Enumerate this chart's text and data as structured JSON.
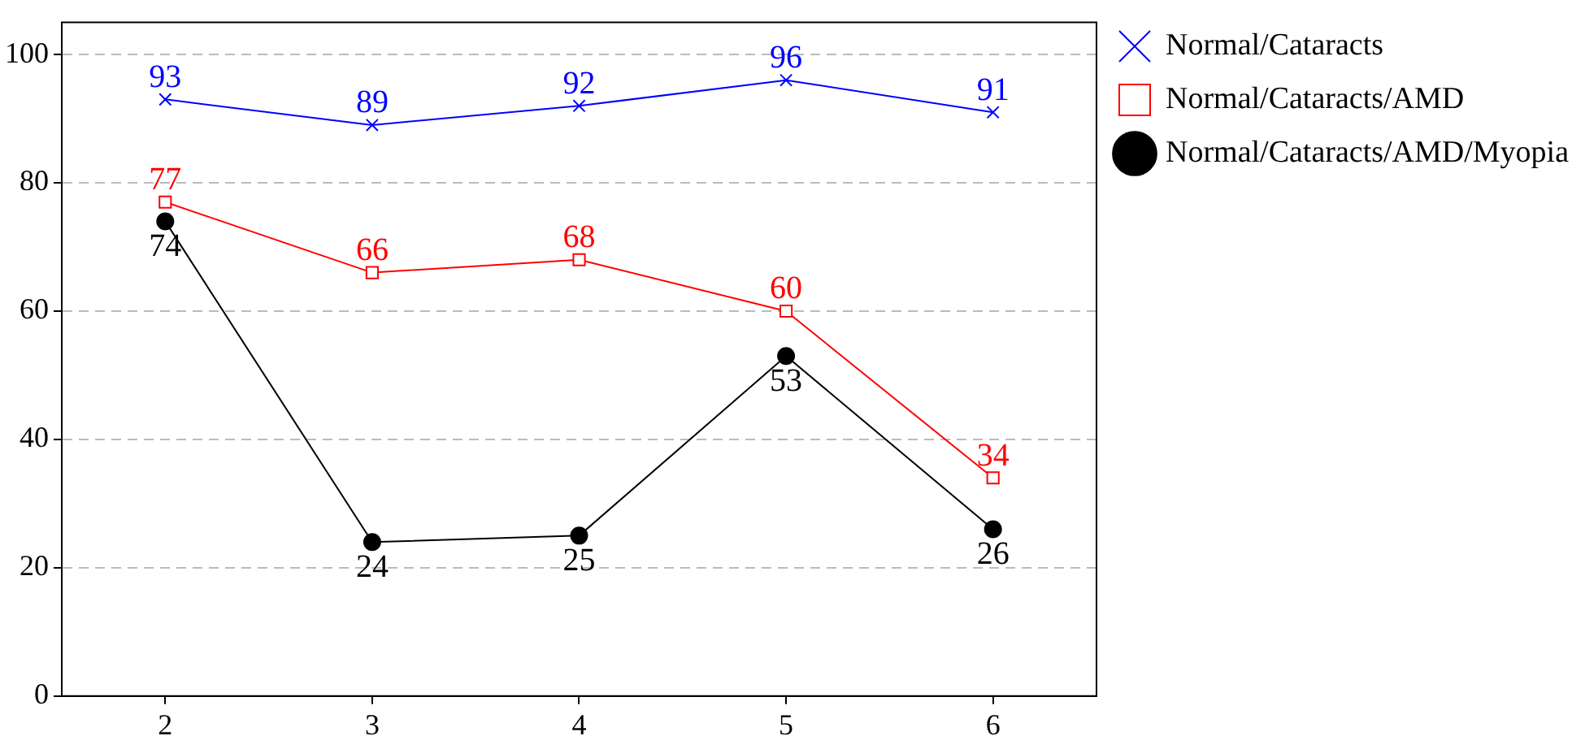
{
  "chart_data": {
    "type": "line",
    "x": [
      2,
      3,
      4,
      5,
      6
    ],
    "xlim": [
      1.5,
      6.5
    ],
    "xticks": [
      2,
      3,
      4,
      5,
      6
    ],
    "ylim": [
      0,
      105
    ],
    "yticks": [
      0,
      20,
      40,
      60,
      80,
      100
    ],
    "grid": "y",
    "legend": "top right",
    "data_labels": true,
    "series": [
      {
        "name": "Normal/Cataracts",
        "color": "#0000ff",
        "marker": "cross",
        "values": [
          93,
          89,
          92,
          96,
          91
        ]
      },
      {
        "name": "Normal/Cataracts/AMD",
        "color": "#ff0000",
        "marker": "square",
        "values": [
          77,
          66,
          68,
          60,
          34
        ]
      },
      {
        "name": "Normal/Cataracts/AMD/Myopia",
        "color": "#000000",
        "marker": "circle",
        "values": [
          74,
          24,
          25,
          53,
          26
        ]
      }
    ]
  }
}
